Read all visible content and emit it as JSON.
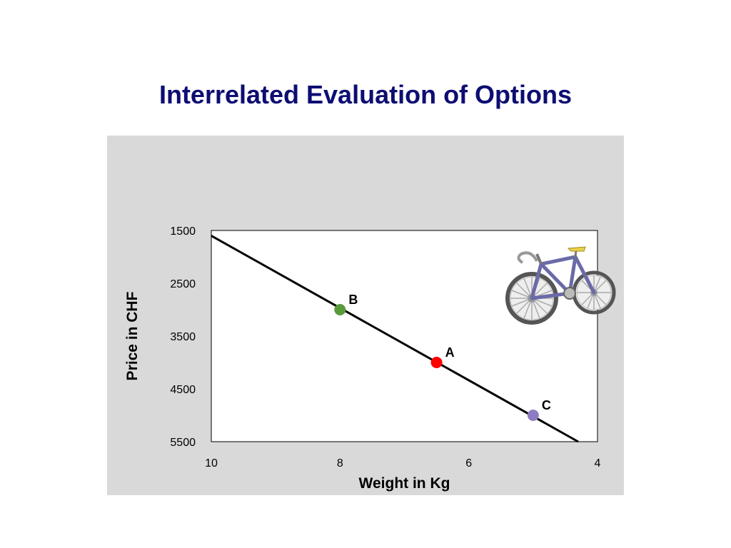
{
  "slide": {
    "title": "Interrelated Evaluation of Options"
  },
  "illustration": {
    "icon": "bicycle-icon"
  },
  "chart_data": {
    "type": "scatter",
    "xlabel": "Weight in Kg",
    "ylabel": "Price in CHF",
    "xlim": [
      10,
      4
    ],
    "ylim": [
      1500,
      5500
    ],
    "x_reversed": true,
    "y_reversed": true,
    "x_ticks": [
      "10",
      "8",
      "6",
      "4"
    ],
    "y_ticks": [
      "1500",
      "2500",
      "3500",
      "4500",
      "5500"
    ],
    "grid": false,
    "legend": "none",
    "points": [
      {
        "label": "A",
        "x": 6.5,
        "y": 4000,
        "color": "#ff0000"
      },
      {
        "label": "B",
        "x": 8,
        "y": 3000,
        "color": "#5a9a3a"
      },
      {
        "label": "C",
        "x": 5,
        "y": 5000,
        "color": "#8e7cc3"
      }
    ],
    "trend_line": {
      "x": [
        10,
        4.3
      ],
      "y": [
        1600,
        5500
      ],
      "color": "#000000"
    },
    "panel_color": "#d9d9d9"
  }
}
